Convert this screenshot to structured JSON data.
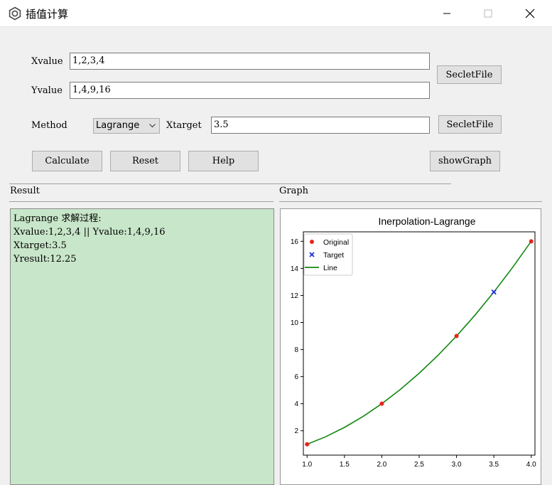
{
  "window": {
    "title": "插值计算"
  },
  "form": {
    "xvalue_label": "Xvalue",
    "xvalue": "1,2,3,4",
    "yvalue_label": "Yvalue",
    "yvalue": "1,4,9,16",
    "select_file_1": "SecletFile",
    "method_label": "Method",
    "method_selected": "Lagrange",
    "xtarget_label": "Xtarget",
    "xtarget": "3.5",
    "select_file_2": "SecletFile"
  },
  "buttons": {
    "calculate": "Calculate",
    "reset": "Reset",
    "help": "Help",
    "show_graph": "showGraph"
  },
  "result": {
    "label": "Result",
    "lines": [
      "Lagrange 求解过程:",
      "Xvalue:1,2,3,4 || Yvalue:1,4,9,16",
      "Xtarget:3.5",
      "Yresult:12.25"
    ]
  },
  "graph": {
    "label": "Graph"
  },
  "chart_data": {
    "type": "line",
    "title": "Inerpolation-Lagrange",
    "legend_placement": "top-left",
    "xlim": [
      0.95,
      4.05
    ],
    "ylim": [
      0.2,
      16.7
    ],
    "x_ticks": [
      "1.0",
      "1.5",
      "2.0",
      "2.5",
      "3.0",
      "3.5",
      "4.0"
    ],
    "x_tick_values": [
      1.0,
      1.5,
      2.0,
      2.5,
      3.0,
      3.5,
      4.0
    ],
    "y_ticks": [
      "2",
      "4",
      "6",
      "8",
      "10",
      "12",
      "14",
      "16"
    ],
    "y_tick_values": [
      2,
      4,
      6,
      8,
      10,
      12,
      14,
      16
    ],
    "series": [
      {
        "name": "Original",
        "kind": "scatter",
        "color": "#e8231d",
        "x": [
          1,
          2,
          3,
          4
        ],
        "y": [
          1,
          4,
          9,
          16
        ]
      },
      {
        "name": "Target",
        "kind": "marker-x",
        "color": "#1f2fd1",
        "x": [
          3.5
        ],
        "y": [
          12.25
        ]
      },
      {
        "name": "Line",
        "kind": "line",
        "color": "#118811",
        "x": [
          1.0,
          1.25,
          1.5,
          1.75,
          2.0,
          2.25,
          2.5,
          2.75,
          3.0,
          3.25,
          3.5,
          3.75,
          4.0
        ],
        "y": [
          1.0,
          1.5625,
          2.25,
          3.0625,
          4.0,
          5.0625,
          6.25,
          7.5625,
          9.0,
          10.5625,
          12.25,
          14.0625,
          16.0
        ]
      }
    ]
  }
}
